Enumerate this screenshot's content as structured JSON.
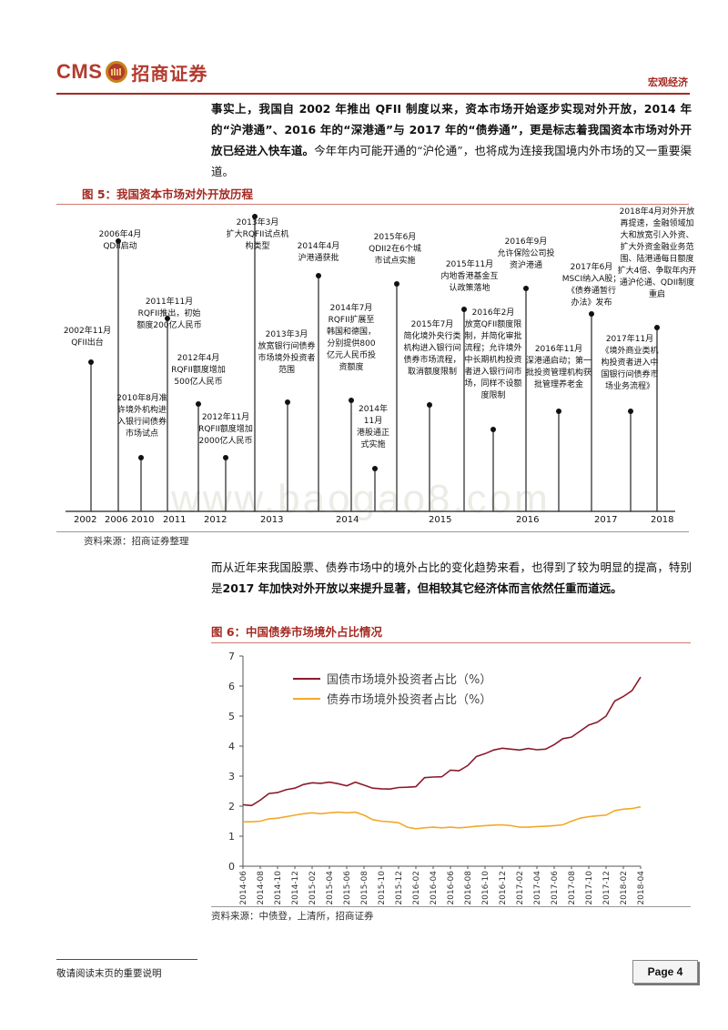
{
  "header": {
    "logo_text": "CMS",
    "company_name": "招商证券",
    "section": "宏观经济",
    "brand_color": "#b33a2e"
  },
  "intro_paragraph": {
    "segments": [
      {
        "text": "事实上，我国自 2002 年推出 QFII 制度以来，资本市场开始逐步实现对外开放，2014 年的“沪港通”、2016 年的“深港通”与 2017 年的“债券通”，更是标志着我国资本市场对外开放已经进入快车道。",
        "bold": true
      },
      {
        "text": "今年年内可能开通的“沪伦通”，也将成为连接我国境内外市场的又一重要渠道。",
        "bold": false
      }
    ]
  },
  "figure5": {
    "title": "图 5：我国资本市场对外开放历程",
    "watermark": "www.baogao8.com",
    "years": [
      "2002",
      "2006",
      "2010",
      "2011",
      "2012",
      "2013",
      "2014",
      "2015",
      "2016",
      "2017",
      "2018"
    ],
    "events": [
      {
        "text": "2002年11月\nQFII出台"
      },
      {
        "text": "2006年4月\nQDII启动"
      },
      {
        "text": "2010年8月准\n许境外机构进\n入银行间债券\n市场试点"
      },
      {
        "text": "2011年11月\nRQFII推出，初始\n额度200亿人民币"
      },
      {
        "text": "2012年4月\nRQFII额度增加\n500亿人民币"
      },
      {
        "text": "2012年11月\nRQFII额度增加\n2000亿人民币"
      },
      {
        "text": "2013年3月\n扩大RQFII试点机\n构类型"
      },
      {
        "text": "2013年3月\n放宽银行间债券\n市场境外投资者\n范围"
      },
      {
        "text": "2014年4月\n沪港通获批"
      },
      {
        "text": "2014年7月\nRQFII扩展至\n韩国和德国，\n分别提供800\n亿元人民币投\n资额度"
      },
      {
        "text": "2014年\n11月\n港股通正\n式实施"
      },
      {
        "text": "2015年6月\nQDII2在6个城\n市试点实施"
      },
      {
        "text": "2015年7月\n简化境外央行类\n机构进入银行间\n债券市场流程，\n取消额度限制"
      },
      {
        "text": "2015年11月\n内地香港基金互\n认政策落地"
      },
      {
        "text": "2016年2月\n放宽QFII额度限\n制，并简化审批\n流程；允许境外\n中长期机构投资\n者进入银行间市\n场，同样不设额\n度限制"
      },
      {
        "text": "2016年9月\n允许保险公司投\n资沪港通"
      },
      {
        "text": "2016年11月\n深港通启动；第一\n批投资管理机构获\n批管理养老金"
      },
      {
        "text": "2017年6月\nMSCI纳入A股；\n《债券通暂行\n办法》发布"
      },
      {
        "text": "2017年11月\n《境外商业类机\n构投资者进入中\n国银行间债券市\n场业务流程》"
      },
      {
        "text": "2018年4月对外开放\n再提速，金融领域加\n大和放宽引入外资、\n扩大外资金融业务范\n围、陆港通每日额度\n扩大4倍、争取年内开\n通沪伦通、QDII制度\n重启"
      }
    ],
    "source": "资料来源：招商证券整理"
  },
  "middle_paragraph": {
    "segments": [
      {
        "text": "而从近年来我国股票、债券市场中的境外占比的变化趋势来看，也得到了较为明显的提高，特别是",
        "bold": false
      },
      {
        "text": "2017 年加快对外开放以来提升显著，但相较其它经济体而言依然任重而道远。",
        "bold": true
      }
    ]
  },
  "figure6": {
    "title": "图 6：中国债券市场境外占比情况",
    "source": "资料来源：中债登，上清所，招商证券",
    "chart_data": {
      "type": "line",
      "title": "",
      "xlabel": "",
      "ylabel": "",
      "ylim": [
        0,
        7
      ],
      "yticks": [
        "0",
        "1",
        "2",
        "3",
        "4",
        "5",
        "6",
        "7"
      ],
      "x": [
        "2014-06",
        "2014-07",
        "2014-08",
        "2014-09",
        "2014-10",
        "2014-11",
        "2014-12",
        "2015-01",
        "2015-02",
        "2015-03",
        "2015-04",
        "2015-05",
        "2015-06",
        "2015-07",
        "2015-08",
        "2015-09",
        "2015-10",
        "2015-11",
        "2015-12",
        "2016-01",
        "2016-02",
        "2016-03",
        "2016-04",
        "2016-05",
        "2016-06",
        "2016-07",
        "2016-08",
        "2016-09",
        "2016-10",
        "2016-11",
        "2016-12",
        "2017-01",
        "2017-02",
        "2017-03",
        "2017-04",
        "2017-05",
        "2017-06",
        "2017-07",
        "2017-08",
        "2017-09",
        "2017-10",
        "2017-11",
        "2017-12",
        "2018-01",
        "2018-02",
        "2018-03",
        "2018-04"
      ],
      "xticks": [
        "2014-06",
        "2014-08",
        "2014-10",
        "2014-12",
        "2015-02",
        "2015-04",
        "2015-06",
        "2015-08",
        "2015-10",
        "2015-12",
        "2016-02",
        "2016-04",
        "2016-06",
        "2016-08",
        "2016-10",
        "2016-12",
        "2017-02",
        "2017-04",
        "2017-06",
        "2017-08",
        "2017-10",
        "2017-12",
        "2018-02",
        "2018-04"
      ],
      "legend_position": "top-left",
      "series": [
        {
          "name": "国债市场境外投资者占比（%）",
          "color": "#8b1a2b",
          "values": [
            2.05,
            2.02,
            2.2,
            2.42,
            2.45,
            2.55,
            2.6,
            2.72,
            2.78,
            2.76,
            2.8,
            2.75,
            2.68,
            2.8,
            2.7,
            2.6,
            2.58,
            2.57,
            2.62,
            2.63,
            2.65,
            2.95,
            2.97,
            2.98,
            3.2,
            3.18,
            3.35,
            3.65,
            3.75,
            3.87,
            3.93,
            3.9,
            3.87,
            3.92,
            3.88,
            3.9,
            4.05,
            4.25,
            4.3,
            4.5,
            4.7,
            4.8,
            5.0,
            5.5,
            5.65,
            5.85,
            6.3
          ]
        },
        {
          "name": "债券市场境外投资者占比（%）",
          "color": "#f2a92a",
          "values": [
            1.48,
            1.48,
            1.5,
            1.58,
            1.6,
            1.65,
            1.7,
            1.75,
            1.78,
            1.75,
            1.78,
            1.8,
            1.78,
            1.8,
            1.7,
            1.55,
            1.5,
            1.48,
            1.45,
            1.3,
            1.25,
            1.28,
            1.3,
            1.28,
            1.3,
            1.28,
            1.3,
            1.33,
            1.35,
            1.37,
            1.38,
            1.35,
            1.3,
            1.3,
            1.32,
            1.33,
            1.35,
            1.38,
            1.5,
            1.6,
            1.65,
            1.68,
            1.7,
            1.85,
            1.9,
            1.92,
            1.98
          ]
        }
      ]
    }
  },
  "footer": {
    "note": "敬请阅读末页的重要说明",
    "page": "Page 4"
  }
}
